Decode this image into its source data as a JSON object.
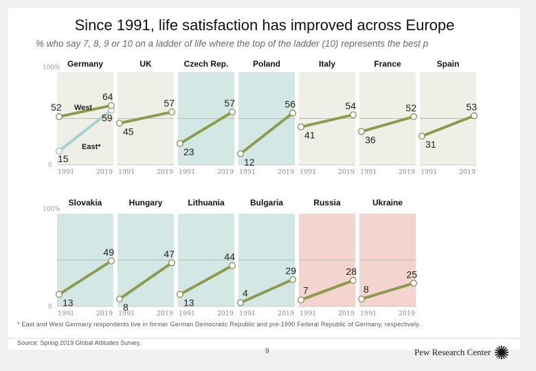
{
  "title": "Since 1991, life satisfaction has improved across Europe",
  "subtitle": "% who say 7, 8, 9 or 10 on a ladder of life where the top of the ladder (10) represents the best p",
  "footnote": "* East and West Germany respondents live in former German Democratic Republic and pre-1990 Federal Republic of Germany, respectively.",
  "source": "Source: Spring 2019 Global Attitudes Survey.",
  "page_number": "9",
  "logo_text": "Pew Research Center",
  "colors": {
    "line": "#8e9a4e",
    "east_line": "#a6d3cf",
    "panel_beige": "#efeee7",
    "panel_teal": "#d3e8e5",
    "panel_pink": "#f4d4cf",
    "midline": "#b8bdb5"
  },
  "chart_data": {
    "type": "line",
    "title": "Since 1991, life satisfaction has improved across Europe",
    "ylabel": "% who say 7, 8, 9 or 10",
    "ylim": [
      0,
      100
    ],
    "y_ticks": [
      "0",
      "100%"
    ],
    "x": [
      "1991",
      "2019"
    ],
    "rows": [
      {
        "panels": [
          {
            "country": "Germany",
            "group": "beige",
            "series": [
              {
                "name": "West",
                "values": [
                  52,
                  64
                ]
              },
              {
                "name": "East*",
                "values": [
                  15,
                  59
                ]
              }
            ]
          },
          {
            "country": "UK",
            "group": "beige",
            "series": [
              {
                "name": "UK",
                "values": [
                  45,
                  57
                ]
              }
            ]
          },
          {
            "country": "Czech Rep.",
            "group": "teal",
            "series": [
              {
                "name": "Czech Rep.",
                "values": [
                  23,
                  57
                ]
              }
            ]
          },
          {
            "country": "Poland",
            "group": "teal",
            "series": [
              {
                "name": "Poland",
                "values": [
                  12,
                  56
                ]
              }
            ]
          },
          {
            "country": "Italy",
            "group": "beige",
            "series": [
              {
                "name": "Italy",
                "values": [
                  41,
                  54
                ]
              }
            ]
          },
          {
            "country": "France",
            "group": "beige",
            "series": [
              {
                "name": "France",
                "values": [
                  36,
                  52
                ]
              }
            ]
          },
          {
            "country": "Spain",
            "group": "beige",
            "series": [
              {
                "name": "Spain",
                "values": [
                  31,
                  53
                ]
              }
            ]
          }
        ]
      },
      {
        "panels": [
          {
            "country": "Slovakia",
            "group": "teal",
            "series": [
              {
                "name": "Slovakia",
                "values": [
                  13,
                  49
                ]
              }
            ]
          },
          {
            "country": "Hungary",
            "group": "teal",
            "series": [
              {
                "name": "Hungary",
                "values": [
                  8,
                  47
                ]
              }
            ]
          },
          {
            "country": "Lithuania",
            "group": "teal",
            "series": [
              {
                "name": "Lithuania",
                "values": [
                  13,
                  44
                ]
              }
            ]
          },
          {
            "country": "Bulgaria",
            "group": "teal",
            "series": [
              {
                "name": "Bulgaria",
                "values": [
                  4,
                  29
                ]
              }
            ]
          },
          {
            "country": "Russia",
            "group": "pink",
            "series": [
              {
                "name": "Russia",
                "values": [
                  7,
                  28
                ]
              }
            ]
          },
          {
            "country": "Ukraine",
            "group": "pink",
            "series": [
              {
                "name": "Ukraine",
                "values": [
                  8,
                  25
                ]
              }
            ]
          }
        ]
      }
    ]
  }
}
